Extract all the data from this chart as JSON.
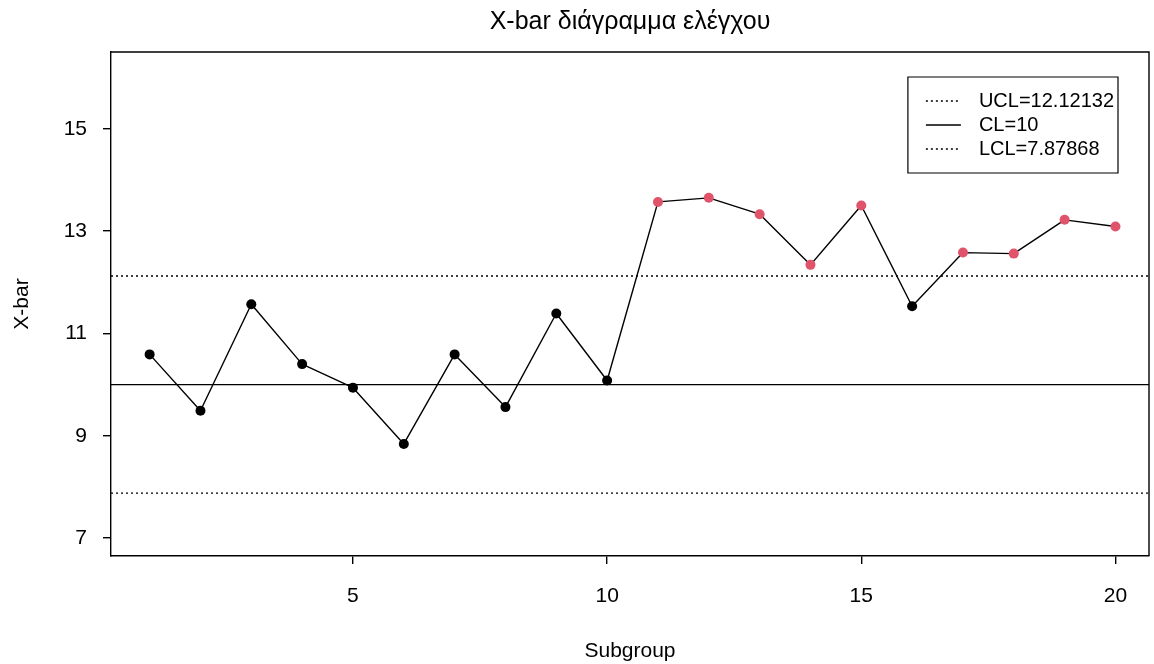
{
  "chart_data": {
    "type": "line",
    "title": "X-bar διάγραμμα ελέγχου",
    "xlabel": "Subgroup",
    "ylabel": "X-bar",
    "x": [
      1,
      2,
      3,
      4,
      5,
      6,
      7,
      8,
      9,
      10,
      11,
      12,
      13,
      14,
      15,
      16,
      17,
      18,
      19,
      20
    ],
    "series": [
      {
        "color": "#000000",
        "colors": [
          "#000000",
          "#000000",
          "#000000",
          "#000000",
          "#000000",
          "#000000",
          "#000000",
          "#000000",
          "#000000",
          "#000000",
          "#df536b",
          "#df536b",
          "#df536b",
          "#df536b",
          "#df536b",
          "#000000",
          "#df536b",
          "#df536b",
          "#df536b",
          "#df536b"
        ],
        "values": [
          10.59,
          9.49,
          11.57,
          10.4,
          9.94,
          8.84,
          10.59,
          9.56,
          11.39,
          10.08,
          13.57,
          13.65,
          13.33,
          12.34,
          13.5,
          11.53,
          12.58,
          12.56,
          13.22,
          13.09
        ]
      }
    ],
    "xlim": [
      0.24,
      20.66
    ],
    "xticks": [
      5,
      10,
      15,
      20
    ],
    "ylim": [
      6.65,
      16.5
    ],
    "yticks": [
      7,
      9,
      11,
      13,
      15
    ],
    "ref_lines": [
      {
        "axis": "y",
        "value": 12.12132,
        "label": "UCL=12.12132",
        "line_style": "dotted",
        "color": "#000000"
      },
      {
        "axis": "y",
        "value": 10,
        "label": "CL=10",
        "line_style": "solid",
        "color": "#000000"
      },
      {
        "axis": "y",
        "value": 7.87868,
        "label": "LCL=7.87868",
        "line_style": "dotted",
        "color": "#000000"
      }
    ],
    "legend": "top right",
    "marker": "circle",
    "line_style": "solid",
    "grid": false
  }
}
